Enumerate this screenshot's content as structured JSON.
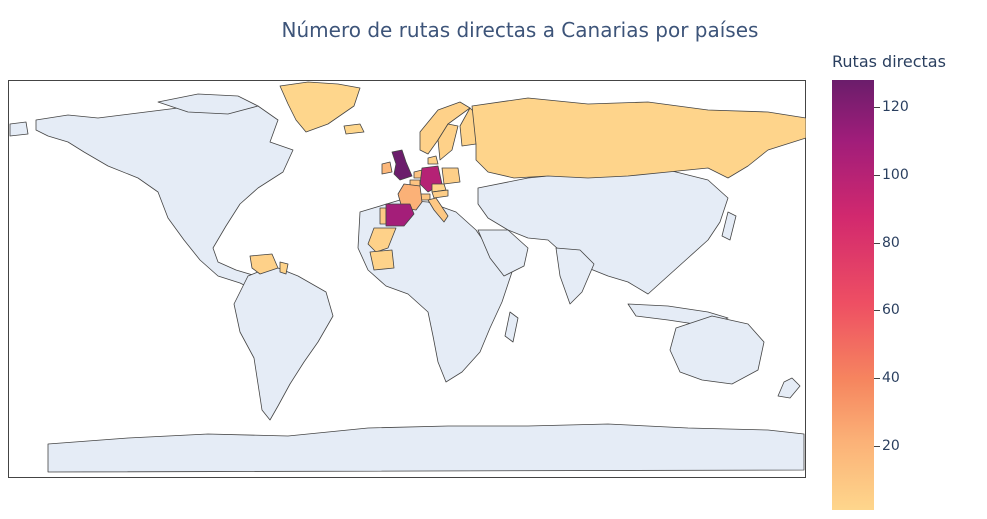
{
  "title": "Número de rutas directas a Canarias por países",
  "colorbar": {
    "title": "Rutas directas",
    "min": 1,
    "max": 128,
    "ticks": [
      20,
      40,
      60,
      80,
      100,
      120
    ]
  },
  "colors": {
    "ocean": "#ffffff",
    "land": "#e5ecf6",
    "border": "#444444",
    "scale": [
      "#fed68c",
      "#fbb177",
      "#f6865f",
      "#ee4f63",
      "#d2296e",
      "#a01d7a",
      "#6b1d6b"
    ]
  },
  "countries": [
    {
      "id": "gb",
      "value": 128
    },
    {
      "id": "es",
      "value": 105
    },
    {
      "id": "de",
      "value": 98
    },
    {
      "id": "fr",
      "value": 22
    },
    {
      "id": "ie",
      "value": 18
    },
    {
      "id": "be",
      "value": 12
    },
    {
      "id": "nl",
      "value": 12
    },
    {
      "id": "ch",
      "value": 10
    },
    {
      "id": "it",
      "value": 9
    },
    {
      "id": "pt",
      "value": 8
    },
    {
      "id": "at",
      "value": 6
    },
    {
      "id": "pl",
      "value": 5
    },
    {
      "id": "dk",
      "value": 4
    },
    {
      "id": "se",
      "value": 4
    },
    {
      "id": "no",
      "value": 4
    },
    {
      "id": "fi",
      "value": 3
    },
    {
      "id": "ma",
      "value": 4
    },
    {
      "id": "mr",
      "value": 3
    },
    {
      "id": "ve",
      "value": 4
    },
    {
      "id": "gy",
      "value": 3
    },
    {
      "id": "ru",
      "value": 2
    },
    {
      "id": "cz",
      "value": 2
    },
    {
      "id": "gl",
      "value": 1
    },
    {
      "id": "is",
      "value": 1
    }
  ]
}
